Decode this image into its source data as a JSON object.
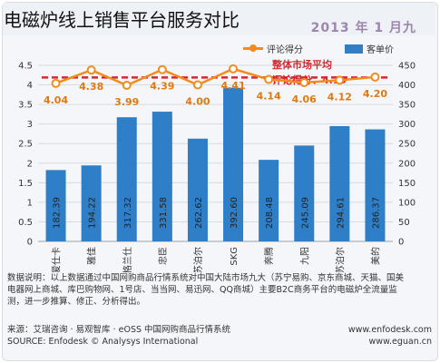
{
  "page_title": "电磁炉线上销售平台服务对比",
  "chart_period": "2013 年 1 月九",
  "legend": {
    "line_label": "评论得分",
    "bar_label": "客单价",
    "line_color": "#f28c1c",
    "bar_color": "#2f7fc8"
  },
  "chart_data": {
    "type": "bar",
    "categories": [
      "爱仕卡",
      "雅佳",
      "格兰仕",
      "忠臣",
      "苏泊尔",
      "SKG",
      "奔腾",
      "九阳",
      "苏泊尔",
      "美的"
    ],
    "series": [
      {
        "name": "客单价",
        "axis": "right",
        "values": [
          182.39,
          194.22,
          317.32,
          331.58,
          262.62,
          392.6,
          208.48,
          245.09,
          294.61,
          286.37
        ]
      },
      {
        "name": "评论得分",
        "axis": "left",
        "values": [
          4.04,
          4.38,
          3.99,
          4.39,
          4.0,
          4.41,
          4.14,
          4.06,
          4.12,
          4.2
        ]
      }
    ],
    "reference_line": {
      "label_line1": "整体市场平均",
      "label_line2": "评论得分：4.19",
      "value": 4.19
    },
    "y_left": {
      "min": 0,
      "max": 4.5,
      "ticks": [
        "0",
        "0.5",
        "1",
        "1.5",
        "2",
        "2.5",
        "3",
        "3.5",
        "4",
        "4.5"
      ]
    },
    "y_right": {
      "min": 0,
      "max": 450,
      "ticks": [
        "0",
        "50",
        "100",
        "150",
        "200",
        "250",
        "300",
        "350",
        "400",
        "450"
      ]
    },
    "bar_labels": [
      "182.39",
      "194.22",
      "317.32",
      "331.58",
      "262.62",
      "392.60",
      "208.48",
      "245.09",
      "294.61",
      "286.37"
    ],
    "point_labels": [
      "4.04",
      "4.38",
      "3.99",
      "4.39",
      "4.00",
      "4.41",
      "4.14",
      "4.06",
      "4.12",
      "4.20"
    ],
    "colors": {
      "bar": "#2f7fc8",
      "line": "#f28c1c",
      "reference": "#d9262c",
      "labels": "#e07a10"
    }
  },
  "footnote": {
    "lines": [
      "数据说明：以上数据通过中国网购商品行情系统对中国大陆市场九大（苏宁易购、京东商城、天猫、国美",
      "电器网上商城、库巴购物网、1号店、当当网、易迅网、QQ商城）主要B2C商务平台的电磁炉全流量监",
      "测，进一步推算、修正、分析得出。"
    ]
  },
  "source": {
    "row1_left": "来源：艾瑞咨询 · 易观智库 · eOSS 中国网购商品行情系统",
    "row1_right": "www.enfodesk.com",
    "row2_left": "SOURCE: Enfodesk © Analysys International",
    "row2_right": "www.eguan.cn"
  }
}
